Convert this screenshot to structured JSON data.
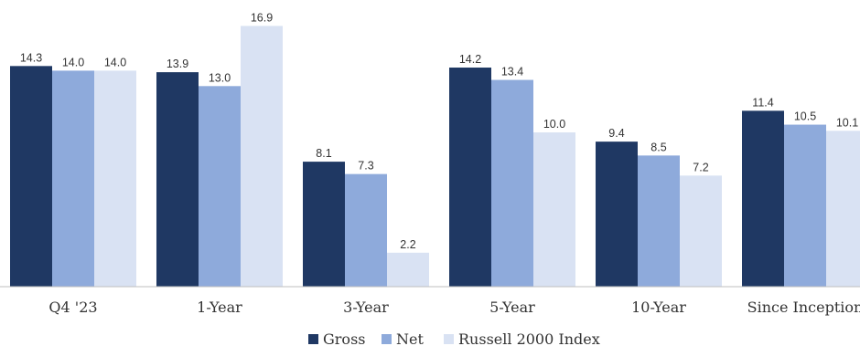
{
  "chart_data": {
    "type": "bar",
    "title": "",
    "xlabel": "",
    "ylabel": "",
    "ylim": [
      0,
      17.5
    ],
    "grid": false,
    "legend_position": "bottom",
    "categories": [
      "Q4 '23",
      "1-Year",
      "3-Year",
      "5-Year",
      "10-Year",
      "Since Inception"
    ],
    "series": [
      {
        "name": "Gross",
        "color": "#1f3863",
        "values": [
          14.3,
          13.9,
          8.1,
          14.2,
          9.4,
          11.4
        ]
      },
      {
        "name": "Net",
        "color": "#8eaadb",
        "values": [
          14.0,
          13.0,
          7.3,
          13.4,
          8.5,
          10.5
        ]
      },
      {
        "name": "Russell 2000 Index",
        "color": "#d9e2f3",
        "values": [
          14.0,
          16.9,
          2.2,
          10.0,
          7.2,
          10.1
        ]
      }
    ]
  }
}
